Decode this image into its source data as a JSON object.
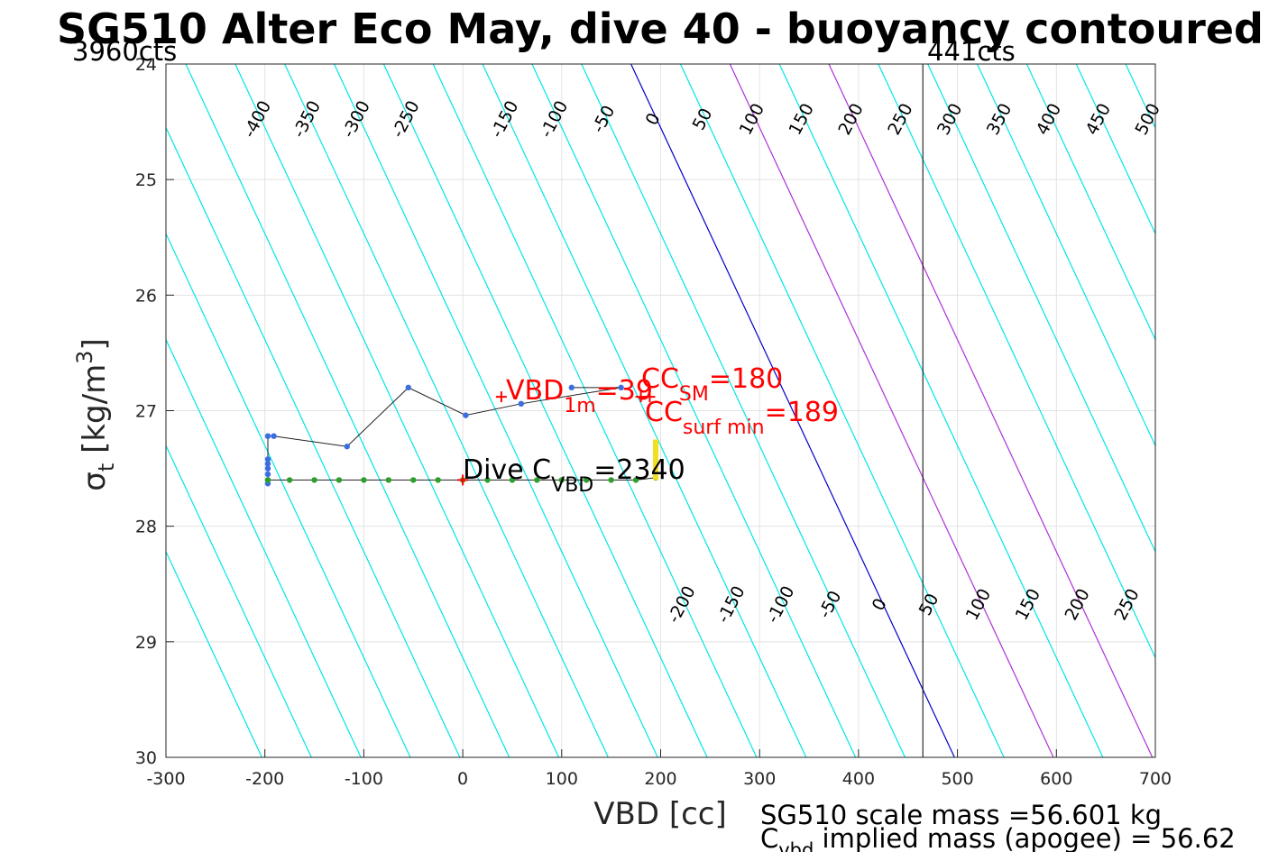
{
  "chart_data": {
    "type": "line",
    "title": "SG510 Alter Eco May, dive 40 - buoyancy contoured",
    "xlabel": "VBD [cc]",
    "ylabel_main": "σ",
    "ylabel_sub": "t",
    "ylabel_unit": " [kg/m",
    "ylabel_sup": "3",
    "ylabel_close": "]",
    "xlim": [
      -300,
      700
    ],
    "ylim": [
      24,
      30
    ],
    "y_reversed": true,
    "grid": true,
    "x_ticks": [
      -300,
      -200,
      -100,
      0,
      100,
      200,
      300,
      400,
      500,
      600,
      700
    ],
    "y_ticks": [
      24,
      25,
      26,
      27,
      28,
      29,
      30
    ],
    "x_tick_labels": [
      "-300",
      "-200",
      "-100",
      "0",
      "100",
      "200",
      "300",
      "400",
      "500",
      "600",
      "700"
    ],
    "y_tick_labels": [
      "24",
      "25",
      "26",
      "27",
      "28",
      "29",
      "30"
    ],
    "vbd_limits": [
      {
        "label": "3960cts",
        "vbd": -300
      },
      {
        "label": "441cts",
        "vbd": 465
      }
    ],
    "contours": {
      "levels": [
        -400,
        -350,
        -300,
        -250,
        -200,
        -150,
        -100,
        -50,
        0,
        50,
        100,
        150,
        200,
        250,
        300,
        350,
        400,
        450,
        500
      ],
      "reference": {
        "vbd": 170,
        "sigma": 24
      },
      "slope_cc_per_sigma": 54.5,
      "colors": {
        "default": "#00e6e6",
        "zero": "#0000cc",
        "cc_limits": "#b030d8"
      },
      "cc_limit_levels": [
        100,
        200
      ],
      "labels_top": [
        "-400",
        "-350",
        "-300",
        "-250",
        "-150",
        "-100",
        "-50",
        "0",
        "50",
        "100",
        "150",
        "200",
        "250",
        "300",
        "350",
        "400",
        "450",
        "500"
      ],
      "labels_bottom": [
        "-200",
        "-150",
        "-100",
        "-50",
        "0",
        "50",
        "100",
        "150",
        "200",
        "250",
        "300",
        "350",
        "400",
        "450",
        "500"
      ]
    },
    "series": [
      {
        "name": "",
        "color": "#3b6fe0",
        "points": [
          [
            110,
            26.8
          ],
          [
            160,
            26.8
          ],
          [
            59,
            26.94
          ],
          [
            3,
            27.04
          ],
          [
            -55,
            26.8
          ],
          [
            -117,
            27.31
          ],
          [
            -191,
            27.22
          ],
          [
            -197,
            27.22
          ],
          [
            -197,
            27.42
          ],
          [
            -197,
            27.46
          ],
          [
            -197,
            27.5
          ],
          [
            -197,
            27.55
          ],
          [
            -197,
            27.6
          ],
          [
            -197,
            27.63
          ]
        ]
      },
      {
        "name": "",
        "color": "#2ca02c",
        "points": [
          [
            -197,
            27.6
          ],
          [
            -175,
            27.6
          ],
          [
            -150,
            27.6
          ],
          [
            -125,
            27.6
          ],
          [
            -100,
            27.6
          ],
          [
            -75,
            27.6
          ],
          [
            -50,
            27.6
          ],
          [
            -25,
            27.6
          ],
          [
            0,
            27.6
          ],
          [
            25,
            27.6
          ],
          [
            50,
            27.6
          ],
          [
            75,
            27.6
          ],
          [
            100,
            27.6
          ],
          [
            125,
            27.6
          ],
          [
            150,
            27.6
          ],
          [
            175,
            27.6
          ],
          [
            195,
            27.58
          ]
        ]
      },
      {
        "name": "",
        "color": "#f0e020",
        "points": [
          [
            195,
            27.25
          ],
          [
            195,
            27.6
          ]
        ]
      }
    ],
    "markers": [
      {
        "vbd": 39,
        "sigma": 26.88,
        "color": "#ff0000"
      },
      {
        "vbd": 0,
        "sigma": 27.6,
        "color": "#ff0000"
      },
      {
        "vbd": 180,
        "sigma": 26.88,
        "color": "#ff0000"
      },
      {
        "vbd": 189,
        "sigma": 26.88,
        "color": "#ff0000"
      }
    ],
    "annotations": {
      "vbd_1m": {
        "prefix": "VBD",
        "sub": "1m",
        "suffix": "=39",
        "color": "#ff0000"
      },
      "cc_sm": {
        "prefix": "CC",
        "sub": "SM",
        "suffix": "=180",
        "color": "#ff0000"
      },
      "cc_surf": {
        "prefix": "CC",
        "sub": "surf min",
        "suffix": "=189",
        "color": "#ff0000"
      },
      "dive_c": {
        "prefix": "Dive C",
        "sub": "VBD",
        "suffix": "=2340",
        "color": "#000000"
      }
    }
  },
  "footer": {
    "line1": "SG510 scale mass =56.601 kg",
    "line2_prefix": "C",
    "line2_sub": "vbd",
    "line2_suffix": " implied mass (apogee) = 56.62"
  }
}
